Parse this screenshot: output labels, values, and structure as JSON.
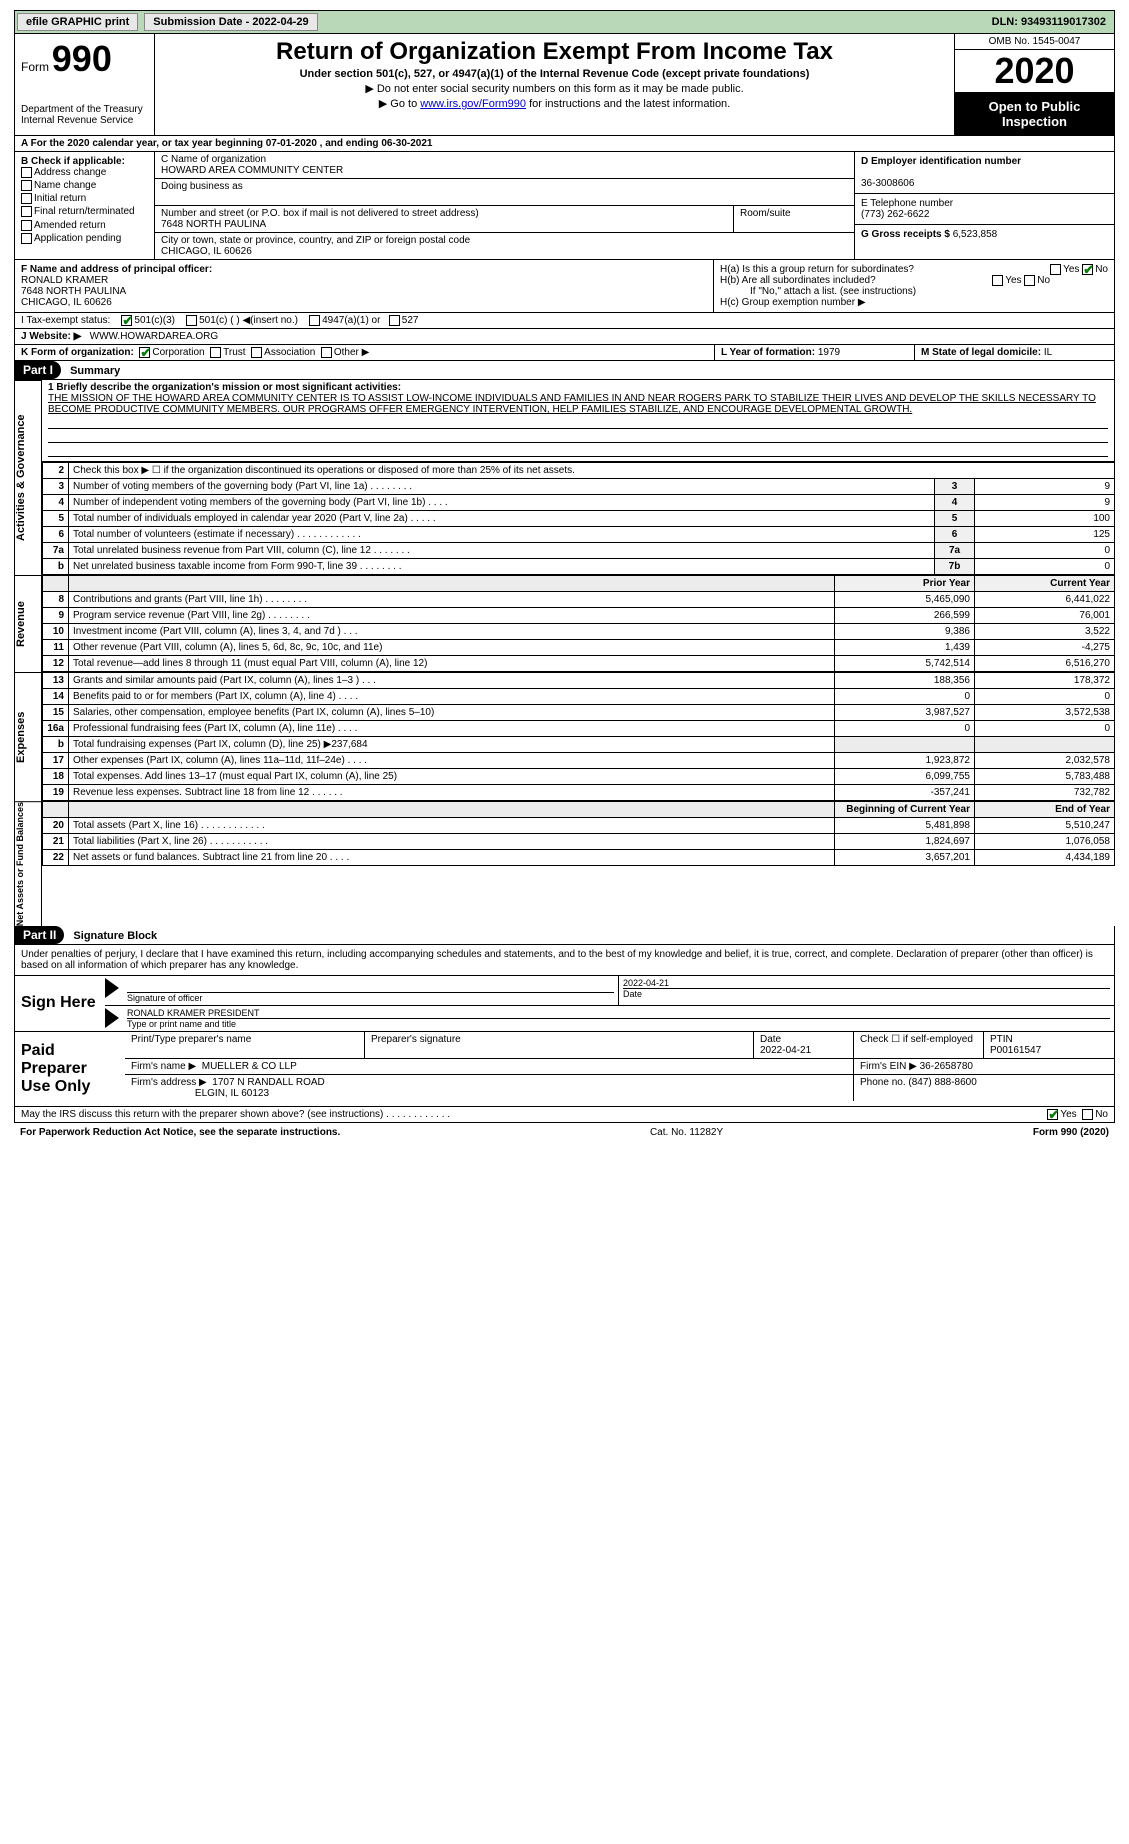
{
  "topbar": {
    "efile": "efile GRAPHIC print",
    "submission_label": "Submission Date - 2022-04-29",
    "dln": "DLN: 93493119017302"
  },
  "header": {
    "form_word": "Form",
    "form_num": "990",
    "dept": "Department of the Treasury",
    "irs": "Internal Revenue Service",
    "title": "Return of Organization Exempt From Income Tax",
    "sub1": "Under section 501(c), 527, or 4947(a)(1) of the Internal Revenue Code (except private foundations)",
    "sub2": "▶ Do not enter social security numbers on this form as it may be made public.",
    "sub3_pre": "▶ Go to ",
    "sub3_link": "www.irs.gov/Form990",
    "sub3_post": " for instructions and the latest information.",
    "omb": "OMB No. 1545-0047",
    "year": "2020",
    "opi": "Open to Public Inspection"
  },
  "row_a": "A For the 2020 calendar year, or tax year beginning 07-01-2020   , and ending 06-30-2021",
  "b": {
    "title": "B Check if applicable:",
    "items": [
      "Address change",
      "Name change",
      "Initial return",
      "Final return/terminated",
      "Amended return",
      "Application pending"
    ]
  },
  "c": {
    "name_label": "C Name of organization",
    "name": "HOWARD AREA COMMUNITY CENTER",
    "dba_label": "Doing business as",
    "addr_label": "Number and street (or P.O. box if mail is not delivered to street address)",
    "room_label": "Room/suite",
    "addr": "7648 NORTH PAULINA",
    "city_label": "City or town, state or province, country, and ZIP or foreign postal code",
    "city": "CHICAGO, IL  60626"
  },
  "d": {
    "label": "D Employer identification number",
    "value": "36-3008606"
  },
  "e": {
    "label": "E Telephone number",
    "value": "(773) 262-6622"
  },
  "g": {
    "label": "G Gross receipts $",
    "value": "6,523,858"
  },
  "f": {
    "label": "F  Name and address of principal officer:",
    "name": "RONALD KRAMER",
    "addr1": "7648 NORTH PAULINA",
    "addr2": "CHICAGO, IL  60626"
  },
  "h": {
    "a": "H(a)  Is this a group return for subordinates?",
    "b": "H(b)  Are all subordinates included?",
    "b_note": "If \"No,\" attach a list. (see instructions)",
    "c": "H(c)  Group exemption number ▶",
    "yes": "Yes",
    "no": "No"
  },
  "i": {
    "label": "I   Tax-exempt status:",
    "c3": "501(c)(3)",
    "c": "501(c) (  ) ◀(insert no.)",
    "a1": "4947(a)(1) or",
    "s527": "527"
  },
  "j": {
    "label": "J   Website: ▶",
    "value": "WWW.HOWARDAREA.ORG"
  },
  "k": {
    "label": "K Form of organization:",
    "corp": "Corporation",
    "trust": "Trust",
    "assoc": "Association",
    "other": "Other ▶"
  },
  "l": {
    "label": "L Year of formation:",
    "value": "1979"
  },
  "m": {
    "label": "M State of legal domicile:",
    "value": "IL"
  },
  "part1": {
    "hdr": "Part I",
    "title": "Summary",
    "line1_label": "1  Briefly describe the organization's mission or most significant activities:",
    "mission": "THE MISSION OF THE HOWARD AREA COMMUNITY CENTER IS TO ASSIST LOW-INCOME INDIVIDUALS AND FAMILIES IN AND NEAR ROGERS PARK TO STABILIZE THEIR LIVES AND DEVELOP THE SKILLS NECESSARY TO BECOME PRODUCTIVE COMMUNITY MEMBERS. OUR PROGRAMS OFFER EMERGENCY INTERVENTION, HELP FAMILIES STABILIZE, AND ENCOURAGE DEVELOPMENTAL GROWTH.",
    "line2": "Check this box ▶ ☐ if the organization discontinued its operations or disposed of more than 25% of its net assets.",
    "side_gov": "Activities & Governance",
    "side_rev": "Revenue",
    "side_exp": "Expenses",
    "side_net": "Net Assets or Fund Balances",
    "rows_gov": [
      {
        "n": "3",
        "t": "Number of voting members of the governing body (Part VI, line 1a)   .    .    .    .    .    .    .    .",
        "box": "3",
        "v": "9"
      },
      {
        "n": "4",
        "t": "Number of independent voting members of the governing body (Part VI, line 1b)   .    .    .    .",
        "box": "4",
        "v": "9"
      },
      {
        "n": "5",
        "t": "Total number of individuals employed in calendar year 2020 (Part V, line 2a)   .    .    .    .    .",
        "box": "5",
        "v": "100"
      },
      {
        "n": "6",
        "t": "Total number of volunteers (estimate if necessary)   .    .    .    .    .    .    .    .    .    .    .    .",
        "box": "6",
        "v": "125"
      },
      {
        "n": "7a",
        "t": "Total unrelated business revenue from Part VIII, column (C), line 12   .    .    .    .    .    .    .",
        "box": "7a",
        "v": "0"
      },
      {
        "n": "b",
        "t": "Net unrelated business taxable income from Form 990-T, line 39   .    .    .    .    .    .    .    .",
        "box": "7b",
        "v": "0"
      }
    ],
    "hdr_prior": "Prior Year",
    "hdr_curr": "Current Year",
    "rows_rev": [
      {
        "n": "8",
        "t": "Contributions and grants (Part VIII, line 1h)   .    .    .    .    .    .    .    .",
        "p": "5,465,090",
        "c": "6,441,022"
      },
      {
        "n": "9",
        "t": "Program service revenue (Part VIII, line 2g)   .    .    .    .    .    .    .    .",
        "p": "266,599",
        "c": "76,001"
      },
      {
        "n": "10",
        "t": "Investment income (Part VIII, column (A), lines 3, 4, and 7d )   .    .    .",
        "p": "9,386",
        "c": "3,522"
      },
      {
        "n": "11",
        "t": "Other revenue (Part VIII, column (A), lines 5, 6d, 8c, 9c, 10c, and 11e)",
        "p": "1,439",
        "c": "-4,275"
      },
      {
        "n": "12",
        "t": "Total revenue—add lines 8 through 11 (must equal Part VIII, column (A), line 12)",
        "p": "5,742,514",
        "c": "6,516,270"
      }
    ],
    "rows_exp": [
      {
        "n": "13",
        "t": "Grants and similar amounts paid (Part IX, column (A), lines 1–3 )   .    .    .",
        "p": "188,356",
        "c": "178,372"
      },
      {
        "n": "14",
        "t": "Benefits paid to or for members (Part IX, column (A), line 4)   .    .    .    .",
        "p": "0",
        "c": "0"
      },
      {
        "n": "15",
        "t": "Salaries, other compensation, employee benefits (Part IX, column (A), lines 5–10)",
        "p": "3,987,527",
        "c": "3,572,538"
      },
      {
        "n": "16a",
        "t": "Professional fundraising fees (Part IX, column (A), line 11e)   .    .    .    .",
        "p": "0",
        "c": "0"
      },
      {
        "n": "b",
        "t": "Total fundraising expenses (Part IX, column (D), line 25) ▶237,684",
        "p": "",
        "c": "",
        "grey": true
      },
      {
        "n": "17",
        "t": "Other expenses (Part IX, column (A), lines 11a–11d, 11f–24e)   .    .    .    .",
        "p": "1,923,872",
        "c": "2,032,578"
      },
      {
        "n": "18",
        "t": "Total expenses. Add lines 13–17 (must equal Part IX, column (A), line 25)",
        "p": "6,099,755",
        "c": "5,783,488"
      },
      {
        "n": "19",
        "t": "Revenue less expenses. Subtract line 18 from line 12   .    .    .    .    .    .",
        "p": "-357,241",
        "c": "732,782"
      }
    ],
    "hdr_beg": "Beginning of Current Year",
    "hdr_end": "End of Year",
    "rows_net": [
      {
        "n": "20",
        "t": "Total assets (Part X, line 16)   .    .    .    .    .    .    .    .    .    .    .    .",
        "p": "5,481,898",
        "c": "5,510,247"
      },
      {
        "n": "21",
        "t": "Total liabilities (Part X, line 26)   .    .    .    .    .    .    .    .    .    .    .",
        "p": "1,824,697",
        "c": "1,076,058"
      },
      {
        "n": "22",
        "t": "Net assets or fund balances. Subtract line 21 from line 20   .    .    .    .",
        "p": "3,657,201",
        "c": "4,434,189"
      }
    ]
  },
  "part2": {
    "hdr": "Part II",
    "title": "Signature Block",
    "intro": "Under penalties of perjury, I declare that I have examined this return, including accompanying schedules and statements, and to the best of my knowledge and belief, it is true, correct, and complete. Declaration of preparer (other than officer) is based on all information of which preparer has any knowledge.",
    "sign_here": "Sign Here",
    "sig_officer": "Signature of officer",
    "sig_date": "2022-04-21",
    "date_lbl": "Date",
    "officer_name": "RONALD KRAMER  PRESIDENT",
    "type_name": "Type or print name and title",
    "paid": "Paid Preparer Use Only",
    "p_name_lbl": "Print/Type preparer's name",
    "p_sig_lbl": "Preparer's signature",
    "p_date_lbl": "Date",
    "p_date": "2022-04-21",
    "p_check": "Check ☐ if self-employed",
    "ptin_lbl": "PTIN",
    "ptin": "P00161547",
    "firm_name_lbl": "Firm's name    ▶",
    "firm_name": "MUELLER & CO LLP",
    "firm_ein_lbl": "Firm's EIN ▶",
    "firm_ein": "36-2658780",
    "firm_addr_lbl": "Firm's address ▶",
    "firm_addr1": "1707 N RANDALL ROAD",
    "firm_addr2": "ELGIN, IL  60123",
    "phone_lbl": "Phone no.",
    "phone": "(847) 888-8600",
    "discuss": "May the IRS discuss this return with the preparer shown above? (see instructions)   .    .    .    .    .    .    .    .    .    .    .    .",
    "yes": "Yes",
    "no": "No"
  },
  "footer": {
    "left": "For Paperwork Reduction Act Notice, see the separate instructions.",
    "center": "Cat. No. 11282Y",
    "right_a": "Form ",
    "right_b": "990",
    "right_c": " (2020)"
  }
}
